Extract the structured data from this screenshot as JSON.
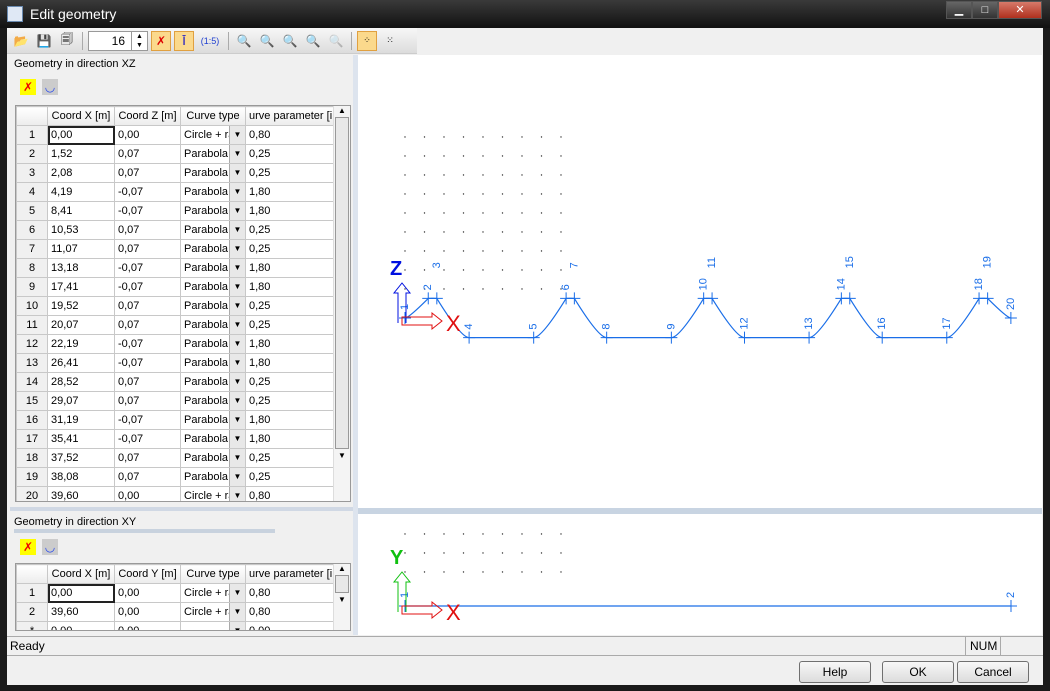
{
  "window": {
    "title": "Edit geometry",
    "minimize": "▁",
    "maximize": "□",
    "close": "✕"
  },
  "toolbar": {
    "segments_value": "16",
    "icons": [
      "open-folder-icon",
      "save-icon",
      "copy-icon",
      "spin",
      "segment-toggle-icon",
      "level-icon",
      "ratio-icon",
      "zoom-in-icon",
      "zoom-out-icon",
      "zoom-window-icon",
      "zoom-fit-icon",
      "zoom-disabled-icon",
      "grid-snap-icon",
      "grid-settings-icon"
    ],
    "ratio_label": "(1:5)"
  },
  "xz": {
    "title": "Geometry in direction XZ",
    "columns": [
      "",
      "Coord X [m]",
      "Coord Z [m]",
      "Curve type",
      "urve parameter [i"
    ],
    "rows": [
      [
        "1",
        "0,00",
        "0,00",
        "Circle + ra",
        "0,80"
      ],
      [
        "2",
        "1,52",
        "0,07",
        "Parabola",
        "0,25"
      ],
      [
        "3",
        "2,08",
        "0,07",
        "Parabola",
        "0,25"
      ],
      [
        "4",
        "4,19",
        "-0,07",
        "Parabola",
        "1,80"
      ],
      [
        "5",
        "8,41",
        "-0,07",
        "Parabola",
        "1,80"
      ],
      [
        "6",
        "10,53",
        "0,07",
        "Parabola",
        "0,25"
      ],
      [
        "7",
        "11,07",
        "0,07",
        "Parabola",
        "0,25"
      ],
      [
        "8",
        "13,18",
        "-0,07",
        "Parabola",
        "1,80"
      ],
      [
        "9",
        "17,41",
        "-0,07",
        "Parabola",
        "1,80"
      ],
      [
        "10",
        "19,52",
        "0,07",
        "Parabola",
        "0,25"
      ],
      [
        "11",
        "20,07",
        "0,07",
        "Parabola",
        "0,25"
      ],
      [
        "12",
        "22,19",
        "-0,07",
        "Parabola",
        "1,80"
      ],
      [
        "13",
        "26,41",
        "-0,07",
        "Parabola",
        "1,80"
      ],
      [
        "14",
        "28,52",
        "0,07",
        "Parabola",
        "0,25"
      ],
      [
        "15",
        "29,07",
        "0,07",
        "Parabola",
        "0,25"
      ],
      [
        "16",
        "31,19",
        "-0,07",
        "Parabola",
        "1,80"
      ],
      [
        "17",
        "35,41",
        "-0,07",
        "Parabola",
        "1,80"
      ],
      [
        "18",
        "37,52",
        "0,07",
        "Parabola",
        "0,25"
      ],
      [
        "19",
        "38,08",
        "0,07",
        "Parabola",
        "0,25"
      ],
      [
        "20",
        "39,60",
        "0,00",
        "Circle + ra",
        "0,80"
      ]
    ]
  },
  "xy": {
    "title": "Geometry in direction XY",
    "columns": [
      "",
      "Coord X [m]",
      "Coord Y [m]",
      "Curve type",
      "urve parameter [i"
    ],
    "rows": [
      [
        "1",
        "0,00",
        "0,00",
        "Circle + ra",
        "0,80"
      ],
      [
        "2",
        "39,60",
        "0,00",
        "Circle + ra",
        "0,80"
      ],
      [
        "*",
        "0,00",
        "0,00",
        "",
        "0,00"
      ]
    ]
  },
  "canvas_xz": {
    "axis_v": "Z",
    "axis_h": "X",
    "node_labels": [
      "1",
      "2",
      "3",
      "4",
      "5",
      "6",
      "7",
      "8",
      "9",
      "10",
      "11",
      "12",
      "13",
      "14",
      "15",
      "16",
      "17",
      "18",
      "19",
      "20"
    ]
  },
  "canvas_xy": {
    "axis_v": "Y",
    "axis_h": "X",
    "node_labels": [
      "1",
      "2"
    ]
  },
  "status": {
    "text": "Ready",
    "num": "NUM"
  },
  "buttons": {
    "help": "Help",
    "ok": "OK",
    "cancel": "Cancel"
  },
  "colors": {
    "geometry": "#1a6ee8",
    "x_axis": "#e01010",
    "z_axis": "#0010e0",
    "y_axis": "#10c010"
  }
}
